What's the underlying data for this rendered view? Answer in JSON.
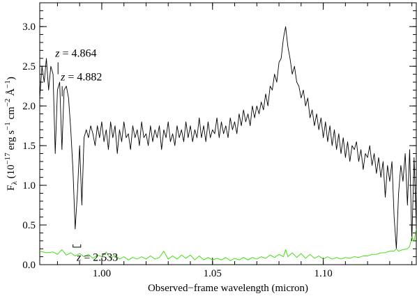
{
  "chart_data": {
    "type": "line",
    "xlabel": "Observed−frame wavelength (micron)",
    "ylabel": {
      "F": "F",
      "lambda": "λ",
      "paren_open": " (10",
      "exp_neg17": "−17",
      "erg": " erg s",
      "exp_neg1": "−1",
      "cm": " cm",
      "exp_neg2a": "−2",
      "angstrom": " Å",
      "exp_neg1b": "−1",
      "paren_close": ")"
    },
    "xlim": [
      0.972,
      1.142
    ],
    "ylim": [
      0.0,
      3.3
    ],
    "x_ticks": [
      1.0,
      1.05,
      1.1
    ],
    "x_tick_labels": [
      "1.00",
      "1.05",
      "1.10"
    ],
    "x_minor_step": 0.01,
    "y_ticks": [
      0.0,
      0.5,
      1.0,
      1.5,
      2.0,
      2.5,
      3.0
    ],
    "y_tick_labels": [
      "0.0",
      "0.5",
      "1.0",
      "1.5",
      "2.0",
      "2.5",
      "3.0"
    ],
    "y_minor_step": 0.1,
    "grid": false,
    "series": [
      {
        "color": "#000000",
        "points": [
          [
            0.972,
            2.1
          ],
          [
            0.973,
            2.5
          ],
          [
            0.974,
            2.3
          ],
          [
            0.975,
            2.6
          ],
          [
            0.976,
            2.2
          ],
          [
            0.977,
            2.5
          ],
          [
            0.978,
            2.4
          ],
          [
            0.979,
            1.4
          ],
          [
            0.98,
            2.2
          ],
          [
            0.981,
            2.3
          ],
          [
            0.982,
            1.45
          ],
          [
            0.983,
            2.2
          ],
          [
            0.984,
            2.25
          ],
          [
            0.985,
            2.1
          ],
          [
            0.986,
            1.7
          ],
          [
            0.987,
            1.2
          ],
          [
            0.988,
            0.45
          ],
          [
            0.989,
            0.9
          ],
          [
            0.99,
            1.5
          ],
          [
            0.991,
            0.75
          ],
          [
            0.992,
            1.6
          ],
          [
            0.993,
            1.7
          ],
          [
            0.994,
            1.6
          ],
          [
            0.995,
            1.75
          ],
          [
            0.996,
            1.65
          ],
          [
            0.997,
            1.5
          ],
          [
            0.998,
            1.75
          ],
          [
            0.999,
            1.6
          ],
          [
            1.0,
            1.8
          ],
          [
            1.001,
            1.55
          ],
          [
            1.002,
            1.7
          ],
          [
            1.003,
            1.45
          ],
          [
            1.004,
            1.8
          ],
          [
            1.005,
            1.6
          ],
          [
            1.006,
            1.75
          ],
          [
            1.007,
            1.4
          ],
          [
            1.008,
            1.7
          ],
          [
            1.009,
            1.55
          ],
          [
            1.01,
            1.8
          ],
          [
            1.011,
            1.6
          ],
          [
            1.012,
            1.65
          ],
          [
            1.013,
            1.45
          ],
          [
            1.014,
            1.75
          ],
          [
            1.015,
            1.6
          ],
          [
            1.016,
            1.7
          ],
          [
            1.017,
            1.5
          ],
          [
            1.018,
            1.8
          ],
          [
            1.019,
            1.6
          ],
          [
            1.02,
            1.65
          ],
          [
            1.021,
            1.5
          ],
          [
            1.022,
            1.75
          ],
          [
            1.023,
            1.55
          ],
          [
            1.024,
            1.7
          ],
          [
            1.025,
            1.6
          ],
          [
            1.026,
            1.75
          ],
          [
            1.027,
            1.45
          ],
          [
            1.028,
            1.7
          ],
          [
            1.029,
            1.6
          ],
          [
            1.03,
            1.8
          ],
          [
            1.031,
            1.55
          ],
          [
            1.032,
            1.65
          ],
          [
            1.033,
            1.5
          ],
          [
            1.034,
            1.75
          ],
          [
            1.035,
            1.6
          ],
          [
            1.036,
            1.7
          ],
          [
            1.037,
            1.55
          ],
          [
            1.038,
            1.8
          ],
          [
            1.039,
            1.6
          ],
          [
            1.04,
            1.75
          ],
          [
            1.041,
            1.55
          ],
          [
            1.042,
            1.7
          ],
          [
            1.043,
            1.6
          ],
          [
            1.044,
            1.85
          ],
          [
            1.045,
            1.6
          ],
          [
            1.046,
            1.75
          ],
          [
            1.047,
            1.55
          ],
          [
            1.048,
            1.8
          ],
          [
            1.049,
            1.6
          ],
          [
            1.05,
            1.7
          ],
          [
            1.051,
            1.65
          ],
          [
            1.052,
            1.85
          ],
          [
            1.053,
            1.6
          ],
          [
            1.054,
            1.8
          ],
          [
            1.055,
            1.65
          ],
          [
            1.056,
            1.75
          ],
          [
            1.057,
            1.6
          ],
          [
            1.058,
            1.85
          ],
          [
            1.059,
            1.7
          ],
          [
            1.06,
            1.8
          ],
          [
            1.061,
            1.65
          ],
          [
            1.062,
            1.9
          ],
          [
            1.063,
            1.75
          ],
          [
            1.064,
            1.95
          ],
          [
            1.065,
            1.8
          ],
          [
            1.066,
            1.9
          ],
          [
            1.067,
            1.75
          ],
          [
            1.068,
            2.0
          ],
          [
            1.069,
            1.85
          ],
          [
            1.07,
            2.0
          ],
          [
            1.071,
            1.9
          ],
          [
            1.072,
            2.05
          ],
          [
            1.073,
            1.95
          ],
          [
            1.074,
            2.15
          ],
          [
            1.075,
            2.0
          ],
          [
            1.076,
            2.25
          ],
          [
            1.077,
            2.2
          ],
          [
            1.078,
            2.4
          ],
          [
            1.079,
            2.3
          ],
          [
            1.08,
            2.55
          ],
          [
            1.081,
            2.6
          ],
          [
            1.082,
            2.85
          ],
          [
            1.083,
            3.0
          ],
          [
            1.084,
            2.75
          ],
          [
            1.085,
            2.6
          ],
          [
            1.086,
            2.4
          ],
          [
            1.087,
            2.5
          ],
          [
            1.088,
            2.3
          ],
          [
            1.089,
            2.25
          ],
          [
            1.09,
            2.1
          ],
          [
            1.091,
            2.2
          ],
          [
            1.092,
            2.0
          ],
          [
            1.093,
            2.1
          ],
          [
            1.094,
            1.85
          ],
          [
            1.095,
            1.95
          ],
          [
            1.096,
            1.75
          ],
          [
            1.097,
            1.9
          ],
          [
            1.098,
            1.7
          ],
          [
            1.099,
            1.85
          ],
          [
            1.1,
            1.6
          ],
          [
            1.101,
            1.8
          ],
          [
            1.102,
            1.55
          ],
          [
            1.103,
            1.75
          ],
          [
            1.104,
            1.5
          ],
          [
            1.105,
            1.7
          ],
          [
            1.106,
            1.45
          ],
          [
            1.107,
            1.65
          ],
          [
            1.108,
            1.4
          ],
          [
            1.109,
            1.6
          ],
          [
            1.11,
            1.35
          ],
          [
            1.111,
            1.55
          ],
          [
            1.112,
            1.3
          ],
          [
            1.113,
            1.5
          ],
          [
            1.114,
            1.45
          ],
          [
            1.115,
            1.55
          ],
          [
            1.116,
            1.3
          ],
          [
            1.117,
            1.45
          ],
          [
            1.118,
            1.2
          ],
          [
            1.119,
            1.4
          ],
          [
            1.12,
            1.35
          ],
          [
            1.121,
            1.5
          ],
          [
            1.122,
            1.25
          ],
          [
            1.123,
            1.4
          ],
          [
            1.124,
            1.15
          ],
          [
            1.125,
            1.35
          ],
          [
            1.126,
            1.1
          ],
          [
            1.127,
            1.3
          ],
          [
            1.128,
            0.85
          ],
          [
            1.129,
            1.25
          ],
          [
            1.13,
            1.05
          ],
          [
            1.131,
            1.3
          ],
          [
            1.132,
            0.6
          ],
          [
            1.133,
            0.2
          ],
          [
            1.134,
            0.9
          ],
          [
            1.135,
            1.25
          ],
          [
            1.136,
            1.05
          ],
          [
            1.137,
            1.4
          ],
          [
            1.138,
            0.75
          ],
          [
            1.139,
            1.45
          ],
          [
            1.14,
            0.3
          ],
          [
            1.141,
            1.35
          ],
          [
            1.142,
            0.5
          ]
        ]
      },
      {
        "color": "#33dd00",
        "points": [
          [
            0.972,
            0.17
          ],
          [
            0.975,
            0.15
          ],
          [
            0.978,
            0.16
          ],
          [
            0.98,
            0.13
          ],
          [
            0.982,
            0.19
          ],
          [
            0.984,
            0.12
          ],
          [
            0.986,
            0.15
          ],
          [
            0.988,
            0.11
          ],
          [
            0.99,
            0.14
          ],
          [
            0.992,
            0.1
          ],
          [
            0.994,
            0.13
          ],
          [
            0.996,
            0.08
          ],
          [
            0.998,
            0.12
          ],
          [
            1.0,
            0.1
          ],
          [
            1.002,
            0.16
          ],
          [
            1.004,
            0.08
          ],
          [
            1.006,
            0.12
          ],
          [
            1.008,
            0.07
          ],
          [
            1.01,
            0.1
          ],
          [
            1.012,
            0.06
          ],
          [
            1.014,
            0.09
          ],
          [
            1.016,
            0.07
          ],
          [
            1.018,
            0.1
          ],
          [
            1.02,
            0.07
          ],
          [
            1.022,
            0.11
          ],
          [
            1.024,
            0.07
          ],
          [
            1.026,
            0.09
          ],
          [
            1.028,
            0.17
          ],
          [
            1.03,
            0.07
          ],
          [
            1.032,
            0.11
          ],
          [
            1.034,
            0.07
          ],
          [
            1.036,
            0.12
          ],
          [
            1.038,
            0.08
          ],
          [
            1.04,
            0.12
          ],
          [
            1.042,
            0.06
          ],
          [
            1.044,
            0.11
          ],
          [
            1.046,
            0.06
          ],
          [
            1.048,
            0.09
          ],
          [
            1.05,
            0.06
          ],
          [
            1.052,
            0.08
          ],
          [
            1.054,
            0.06
          ],
          [
            1.056,
            0.09
          ],
          [
            1.058,
            0.05
          ],
          [
            1.06,
            0.08
          ],
          [
            1.062,
            0.06
          ],
          [
            1.064,
            0.09
          ],
          [
            1.066,
            0.06
          ],
          [
            1.068,
            0.09
          ],
          [
            1.07,
            0.07
          ],
          [
            1.072,
            0.1
          ],
          [
            1.074,
            0.08
          ],
          [
            1.076,
            0.12
          ],
          [
            1.078,
            0.09
          ],
          [
            1.08,
            0.13
          ],
          [
            1.082,
            0.1
          ],
          [
            1.083,
            0.19
          ],
          [
            1.084,
            0.1
          ],
          [
            1.086,
            0.15
          ],
          [
            1.088,
            0.09
          ],
          [
            1.09,
            0.14
          ],
          [
            1.092,
            0.08
          ],
          [
            1.094,
            0.13
          ],
          [
            1.096,
            0.08
          ],
          [
            1.098,
            0.11
          ],
          [
            1.1,
            0.07
          ],
          [
            1.102,
            0.1
          ],
          [
            1.104,
            0.07
          ],
          [
            1.106,
            0.09
          ],
          [
            1.108,
            0.07
          ],
          [
            1.11,
            0.09
          ],
          [
            1.112,
            0.08
          ],
          [
            1.114,
            0.1
          ],
          [
            1.116,
            0.09
          ],
          [
            1.118,
            0.11
          ],
          [
            1.12,
            0.11
          ],
          [
            1.122,
            0.13
          ],
          [
            1.124,
            0.13
          ],
          [
            1.126,
            0.15
          ],
          [
            1.128,
            0.15
          ],
          [
            1.13,
            0.17
          ],
          [
            1.132,
            0.17
          ],
          [
            1.133,
            0.2
          ],
          [
            1.134,
            0.17
          ],
          [
            1.136,
            0.19
          ],
          [
            1.138,
            0.2
          ],
          [
            1.139,
            0.23
          ],
          [
            1.14,
            0.35
          ],
          [
            1.141,
            0.3
          ],
          [
            1.142,
            0.45
          ]
        ]
      }
    ],
    "annotations": [
      {
        "z": "z",
        "eq": " = 4.864",
        "x": 0.979,
        "y": 2.62,
        "tick_top": 2.55,
        "tick_bottom": 2.4
      },
      {
        "z": "z",
        "eq": " = 4.882",
        "x": 0.9815,
        "y": 2.32,
        "tick_top": 2.25,
        "tick_bottom": 2.12
      },
      {
        "z": "z",
        "eq": " = 2.533",
        "x": 0.9887,
        "y": 0.05,
        "bracket_x0": 0.987,
        "bracket_x1": 0.9905,
        "bracket_y": 0.22
      }
    ]
  }
}
